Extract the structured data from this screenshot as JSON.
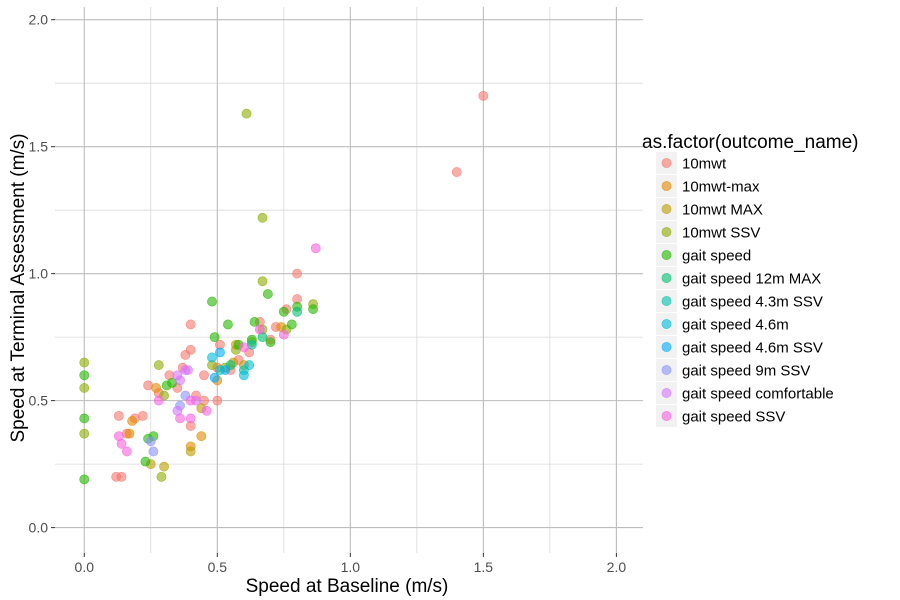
{
  "chart_data": {
    "type": "scatter",
    "title": "",
    "xlabel": "Speed at Baseline (m/s)",
    "ylabel": "Speed at Terminal Assessment (m/s)",
    "xlim": [
      -0.11,
      2.1
    ],
    "ylim": [
      -0.1,
      2.05
    ],
    "x_ticks": [
      "0.0",
      "0.5",
      "1.0",
      "1.5",
      "2.0"
    ],
    "y_ticks": [
      "0.0",
      "0.5",
      "1.0",
      "1.5",
      "2.0"
    ],
    "grid": true,
    "legend": {
      "title": "as.factor(outcome_name)",
      "position": "right"
    },
    "series": [
      {
        "name": "10mwt",
        "color": "#F8766D",
        "points": [
          [
            1.5,
            1.7
          ],
          [
            1.4,
            1.4
          ],
          [
            0.8,
            1.0
          ],
          [
            0.8,
            0.9
          ],
          [
            0.76,
            0.86
          ],
          [
            0.72,
            0.79
          ],
          [
            0.7,
            0.74
          ],
          [
            0.66,
            0.81
          ],
          [
            0.62,
            0.69
          ],
          [
            0.58,
            0.66
          ],
          [
            0.55,
            0.62
          ],
          [
            0.51,
            0.72
          ],
          [
            0.5,
            0.63
          ],
          [
            0.45,
            0.6
          ],
          [
            0.42,
            0.52
          ],
          [
            0.4,
            0.8
          ],
          [
            0.4,
            0.7
          ],
          [
            0.38,
            0.68
          ],
          [
            0.37,
            0.63
          ],
          [
            0.35,
            0.55
          ],
          [
            0.32,
            0.6
          ],
          [
            0.28,
            0.53
          ],
          [
            0.24,
            0.56
          ],
          [
            0.22,
            0.44
          ],
          [
            0.19,
            0.43
          ],
          [
            0.16,
            0.37
          ],
          [
            0.13,
            0.44
          ],
          [
            0.12,
            0.2
          ],
          [
            0.14,
            0.2
          ],
          [
            0.45,
            0.5
          ],
          [
            0.5,
            0.5
          ],
          [
            0.4,
            0.4
          ]
        ]
      },
      {
        "name": "10mwt-max",
        "color": "#E18A00",
        "points": [
          [
            0.18,
            0.42
          ],
          [
            0.17,
            0.37
          ],
          [
            0.27,
            0.55
          ],
          [
            0.44,
            0.36
          ],
          [
            0.4,
            0.32
          ],
          [
            0.5,
            0.58
          ],
          [
            0.57,
            0.72
          ],
          [
            0.74,
            0.79
          ]
        ]
      },
      {
        "name": "10mwt MAX",
        "color": "#BE9C00",
        "points": [
          [
            0.4,
            0.3
          ],
          [
            0.44,
            0.47
          ],
          [
            0.3,
            0.24
          ],
          [
            0.25,
            0.25
          ],
          [
            0.6,
            0.64
          ],
          [
            0.56,
            0.65
          ]
        ]
      },
      {
        "name": "10mwt SSV",
        "color": "#8CAB00",
        "points": [
          [
            0.61,
            1.63
          ],
          [
            0.67,
            1.22
          ],
          [
            0.67,
            0.97
          ],
          [
            0.0,
            0.65
          ],
          [
            0.0,
            0.55
          ],
          [
            0.0,
            0.37
          ],
          [
            0.28,
            0.64
          ],
          [
            0.3,
            0.52
          ],
          [
            0.29,
            0.2
          ],
          [
            0.48,
            0.64
          ],
          [
            0.53,
            0.63
          ],
          [
            0.57,
            0.7
          ],
          [
            0.63,
            0.73
          ],
          [
            0.67,
            0.78
          ],
          [
            0.76,
            0.78
          ],
          [
            0.86,
            0.88
          ]
        ]
      },
      {
        "name": "gait speed",
        "color": "#24B700",
        "points": [
          [
            0.0,
            0.6
          ],
          [
            0.0,
            0.43
          ],
          [
            0.0,
            0.19
          ],
          [
            0.23,
            0.26
          ],
          [
            0.26,
            0.36
          ],
          [
            0.24,
            0.35
          ],
          [
            0.31,
            0.56
          ],
          [
            0.33,
            0.57
          ],
          [
            0.48,
            0.89
          ],
          [
            0.49,
            0.75
          ],
          [
            0.54,
            0.8
          ],
          [
            0.58,
            0.72
          ],
          [
            0.63,
            0.74
          ],
          [
            0.64,
            0.81
          ],
          [
            0.69,
            0.92
          ],
          [
            0.7,
            0.73
          ],
          [
            0.75,
            0.85
          ],
          [
            0.78,
            0.8
          ],
          [
            0.8,
            0.87
          ],
          [
            0.86,
            0.86
          ]
        ]
      },
      {
        "name": "gait speed 12m MAX",
        "color": "#00BE70",
        "points": [
          [
            0.55,
            0.64
          ],
          [
            0.67,
            0.75
          ],
          [
            0.8,
            0.85
          ]
        ]
      },
      {
        "name": "gait speed 4.3m SSV",
        "color": "#00C1AB",
        "points": [
          [
            0.51,
            0.62
          ],
          [
            0.6,
            0.62
          ],
          [
            0.63,
            0.72
          ]
        ]
      },
      {
        "name": "gait speed 4.6m",
        "color": "#00BBDA",
        "points": [
          [
            0.48,
            0.67
          ],
          [
            0.6,
            0.6
          ],
          [
            0.62,
            0.64
          ]
        ]
      },
      {
        "name": "gait speed 4.6m SSV",
        "color": "#00ACFC",
        "points": [
          [
            0.49,
            0.59
          ],
          [
            0.51,
            0.69
          ],
          [
            0.53,
            0.62
          ]
        ]
      },
      {
        "name": "gait speed 9m SSV",
        "color": "#8B93FF",
        "points": [
          [
            0.26,
            0.3
          ],
          [
            0.25,
            0.34
          ],
          [
            0.38,
            0.52
          ],
          [
            0.36,
            0.48
          ]
        ]
      },
      {
        "name": "gait speed comfortable",
        "color": "#D575FE",
        "points": [
          [
            0.35,
            0.6
          ],
          [
            0.38,
            0.62
          ],
          [
            0.39,
            0.62
          ],
          [
            0.35,
            0.46
          ],
          [
            0.42,
            0.5
          ],
          [
            0.36,
            0.58
          ]
        ]
      },
      {
        "name": "gait speed SSV",
        "color": "#F962DD",
        "points": [
          [
            0.87,
            1.1
          ],
          [
            0.75,
            0.76
          ],
          [
            0.66,
            0.78
          ],
          [
            0.6,
            0.71
          ],
          [
            0.4,
            0.5
          ],
          [
            0.46,
            0.46
          ],
          [
            0.36,
            0.43
          ],
          [
            0.4,
            0.43
          ],
          [
            0.28,
            0.5
          ],
          [
            0.14,
            0.33
          ],
          [
            0.13,
            0.36
          ],
          [
            0.16,
            0.3
          ]
        ]
      }
    ]
  }
}
